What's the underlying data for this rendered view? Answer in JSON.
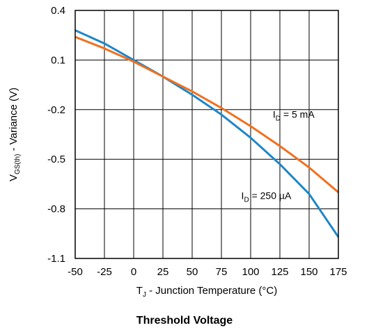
{
  "chart_data": {
    "type": "line",
    "caption": "Threshold Voltage",
    "xlabel": {
      "main": "T",
      "sub": "J",
      "rest": " - Junction Temperature (°C)"
    },
    "ylabel": {
      "main": "V",
      "sub": "GS(th)",
      "rest": " - Variance (V)"
    },
    "xlim": [
      -50,
      175
    ],
    "ylim": [
      -1.1,
      0.4
    ],
    "x_ticks": [
      -50,
      -25,
      0,
      25,
      50,
      75,
      100,
      125,
      150,
      175
    ],
    "y_ticks": [
      0.4,
      0.1,
      -0.2,
      -0.5,
      -0.8,
      -1.1
    ],
    "x_tick_labels": [
      "-50",
      "-25",
      "0",
      "25",
      "50",
      "75",
      "100",
      "125",
      "150",
      "175"
    ],
    "y_tick_labels": [
      "0.4",
      "0.1",
      "-0.2",
      "-0.5",
      "-0.8",
      "-1.1"
    ],
    "grid": true,
    "series": [
      {
        "color": "#1f86c8",
        "label": {
          "main": "I",
          "sub": "D",
          "rest": " = 250 µA"
        },
        "label_at": {
          "x": 92,
          "y": -0.74
        },
        "x": [
          -50,
          -25,
          0,
          25,
          50,
          75,
          100,
          125,
          150,
          175
        ],
        "y": [
          0.28,
          0.2,
          0.1,
          0.0,
          -0.11,
          -0.23,
          -0.37,
          -0.53,
          -0.71,
          -0.97
        ]
      },
      {
        "color": "#f0701e",
        "label": {
          "main": "I",
          "sub": "D",
          "rest": " = 5 mA"
        },
        "label_at": {
          "x": 119,
          "y": -0.25
        },
        "x": [
          -50,
          -25,
          0,
          25,
          50,
          75,
          100,
          125,
          150,
          175
        ],
        "y": [
          0.24,
          0.17,
          0.09,
          0.0,
          -0.09,
          -0.19,
          -0.3,
          -0.42,
          -0.55,
          -0.7
        ]
      }
    ]
  }
}
